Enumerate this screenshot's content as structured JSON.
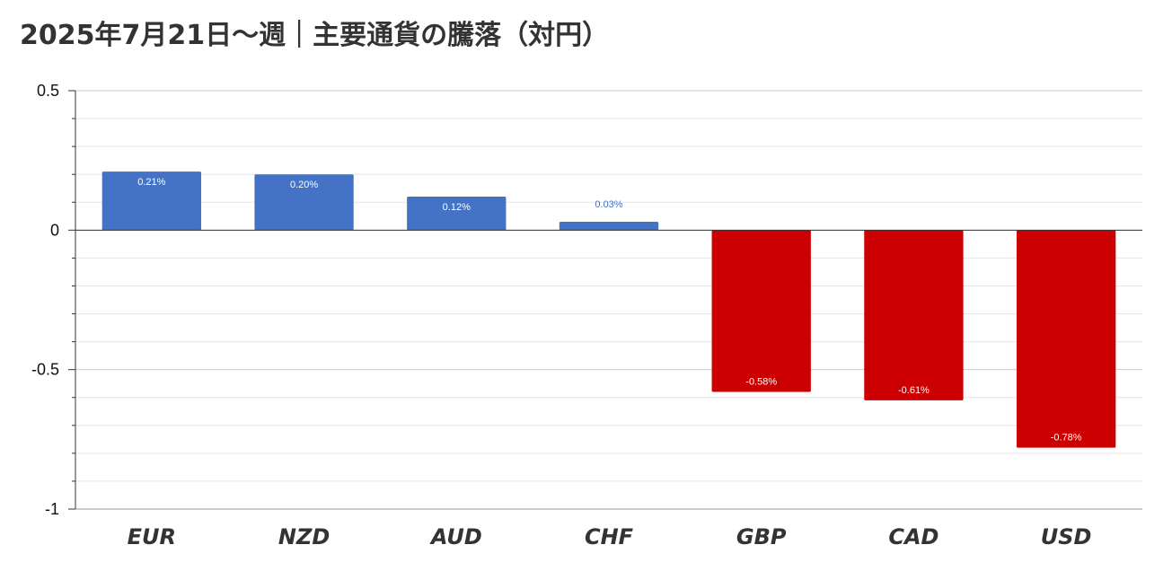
{
  "chart_data": {
    "type": "bar",
    "title": "2025年7月21日～週｜主要通貨の騰落（対円）",
    "categories": [
      "EUR",
      "NZD",
      "AUD",
      "CHF",
      "GBP",
      "CAD",
      "USD"
    ],
    "values": [
      0.21,
      0.2,
      0.12,
      0.03,
      -0.58,
      -0.61,
      -0.78
    ],
    "data_labels": [
      "0.21%",
      "0.20%",
      "0.12%",
      "0.03%",
      "-0.58%",
      "-0.61%",
      "-0.78%"
    ],
    "ylim": [
      -1,
      0.5
    ],
    "yticks": [
      0.5,
      0,
      -0.5,
      -1
    ],
    "ytick_labels": [
      "0.5",
      "0",
      "-0.5",
      "-1"
    ],
    "grid": true,
    "xlabel": "",
    "ylabel": "",
    "colors": {
      "positive": "#4472c4",
      "negative": "#cc0000"
    }
  }
}
